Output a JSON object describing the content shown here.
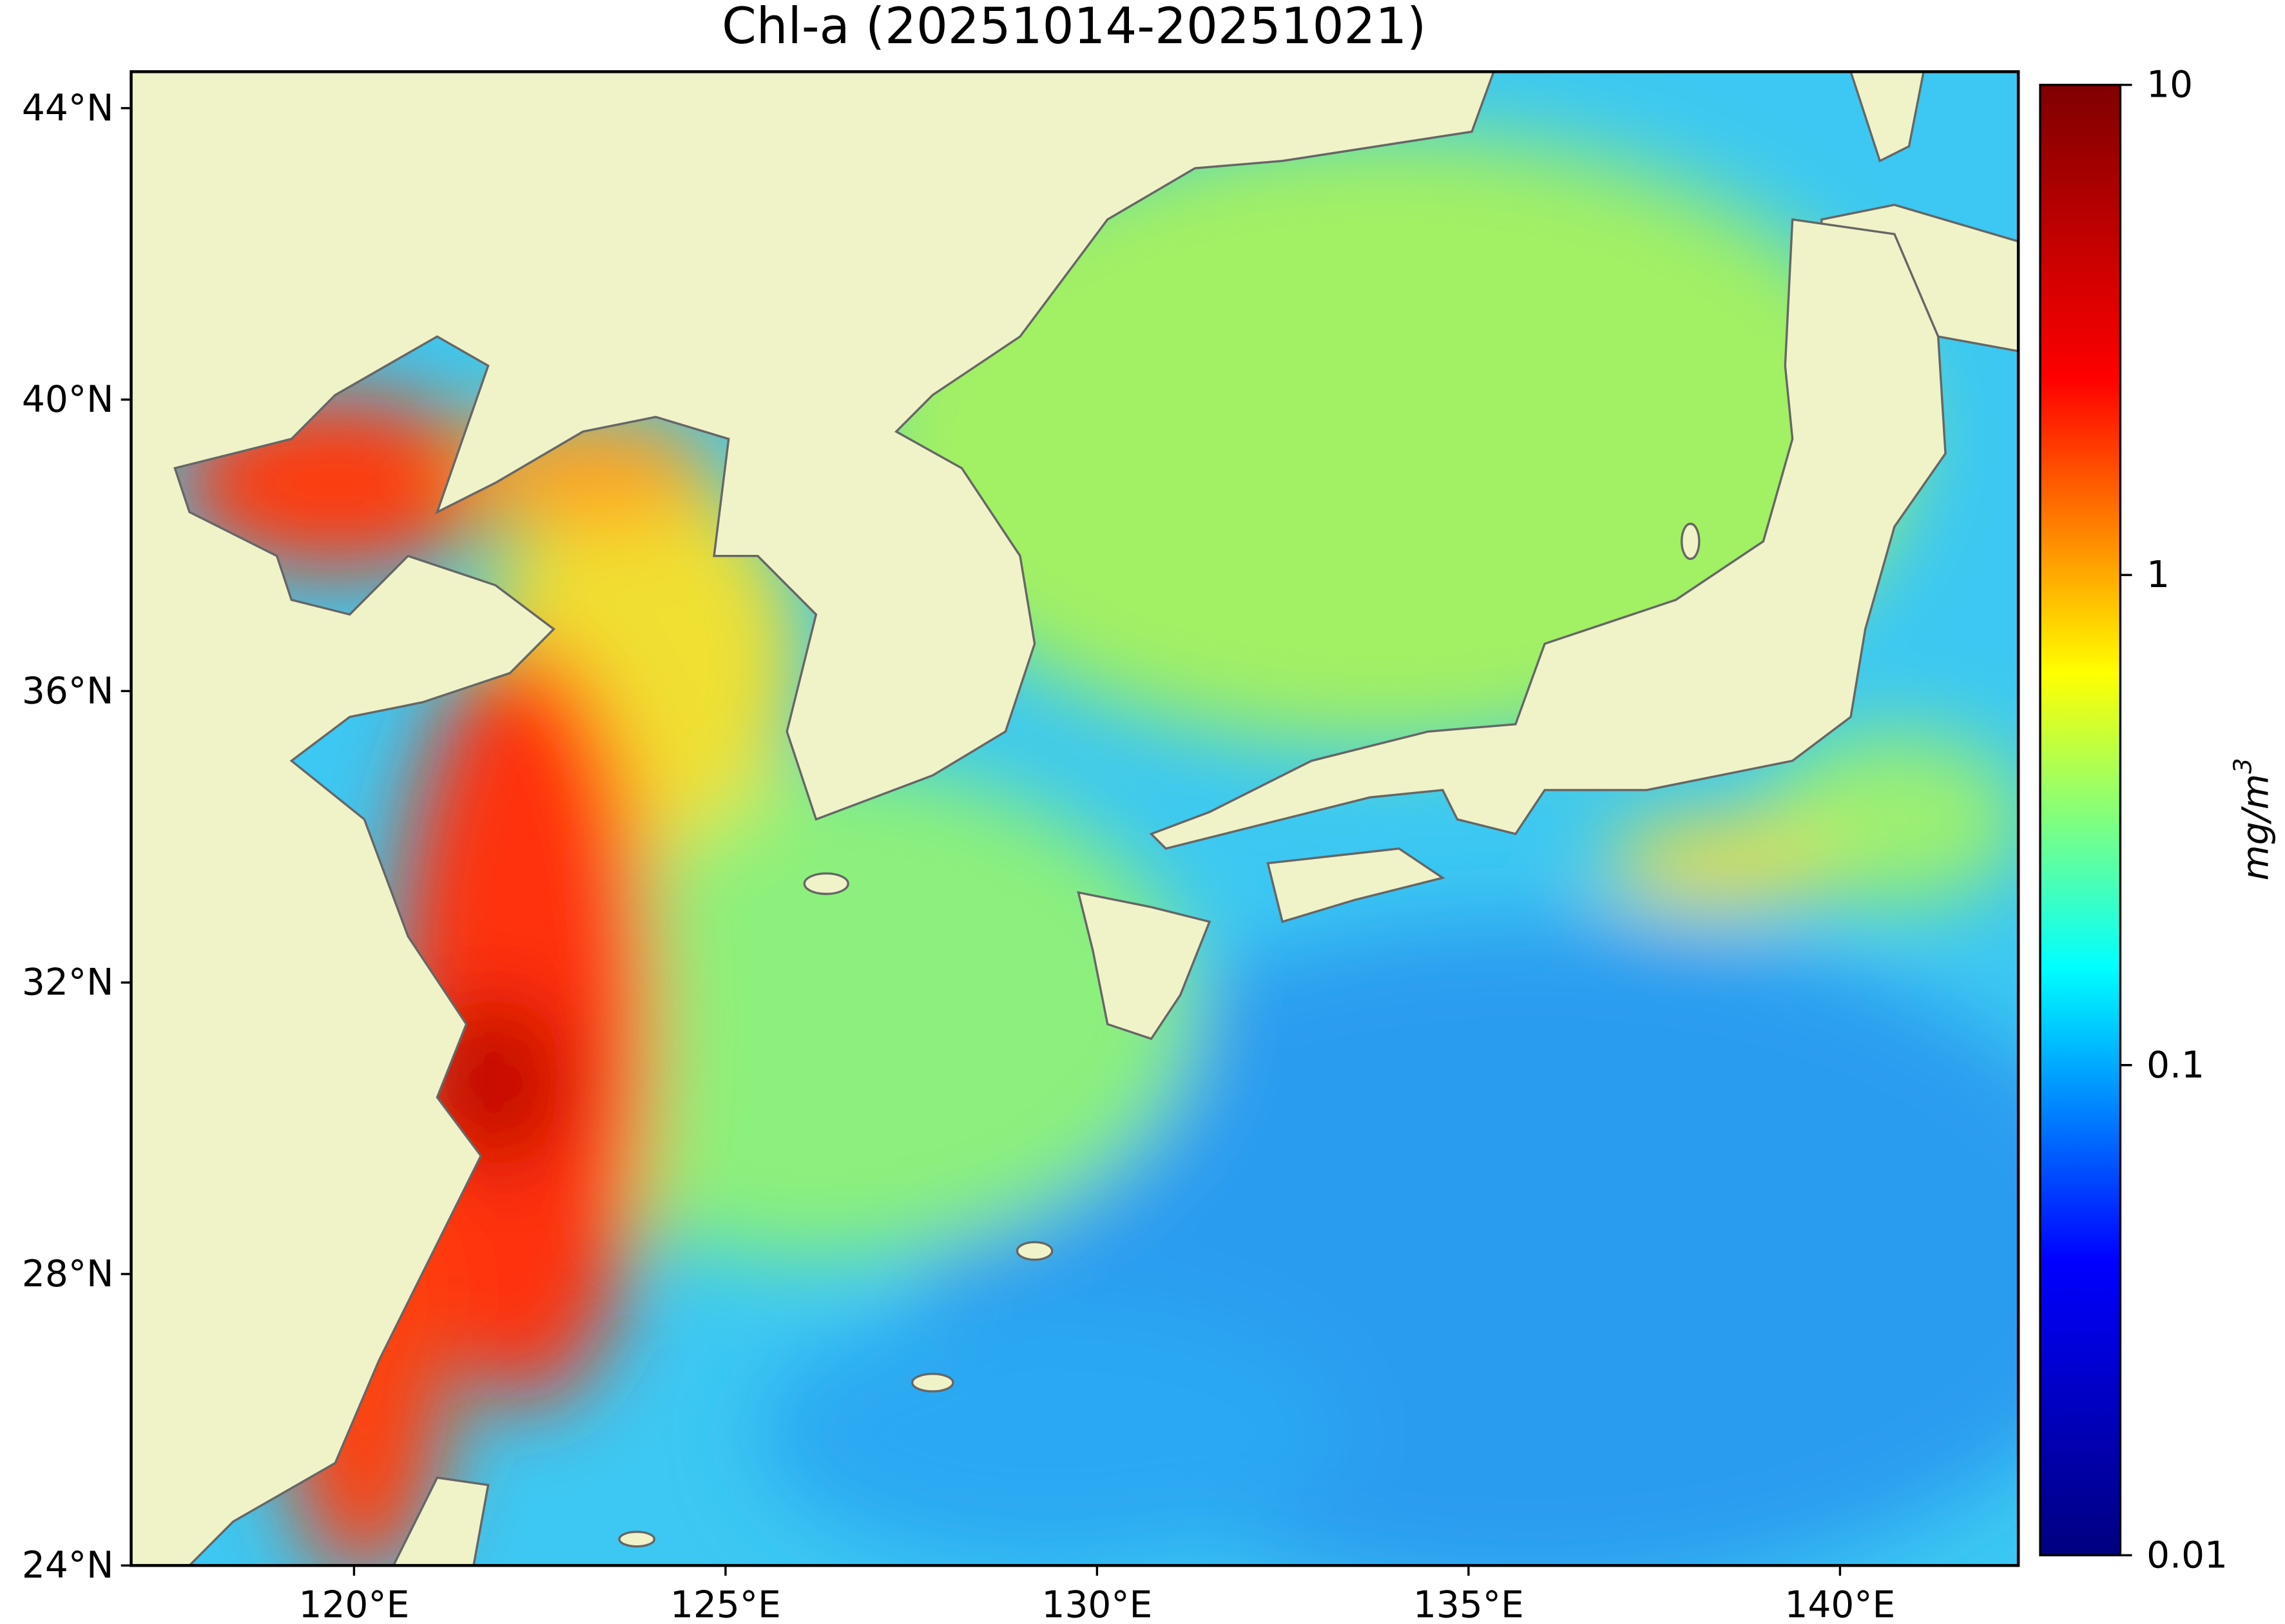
{
  "title": "Chl-a (20251014-20251021)",
  "map": {
    "xlim": [
      117,
      142.4
    ],
    "ylim": [
      24,
      44.5
    ],
    "xticks": [
      {
        "value": 120,
        "label": "120°E"
      },
      {
        "value": 125,
        "label": "125°E"
      },
      {
        "value": 130,
        "label": "130°E"
      },
      {
        "value": 135,
        "label": "135°E"
      },
      {
        "value": 140,
        "label": "140°E"
      }
    ],
    "yticks": [
      {
        "value": 24,
        "label": "24°N"
      },
      {
        "value": 28,
        "label": "28°N"
      },
      {
        "value": 32,
        "label": "32°N"
      },
      {
        "value": 36,
        "label": "36°N"
      },
      {
        "value": 40,
        "label": "40°N"
      },
      {
        "value": 44,
        "label": "44°N"
      }
    ]
  },
  "colorbar": {
    "scale": "log",
    "lim": [
      0.01,
      10
    ],
    "ticks": [
      0.01,
      0.1,
      1,
      10
    ],
    "label": "mg/m",
    "label_exponent": "3",
    "colormap": [
      "#00007f",
      "#0000ff",
      "#00ffff",
      "#ffff00",
      "#ff0000",
      "#7f0000"
    ]
  }
}
